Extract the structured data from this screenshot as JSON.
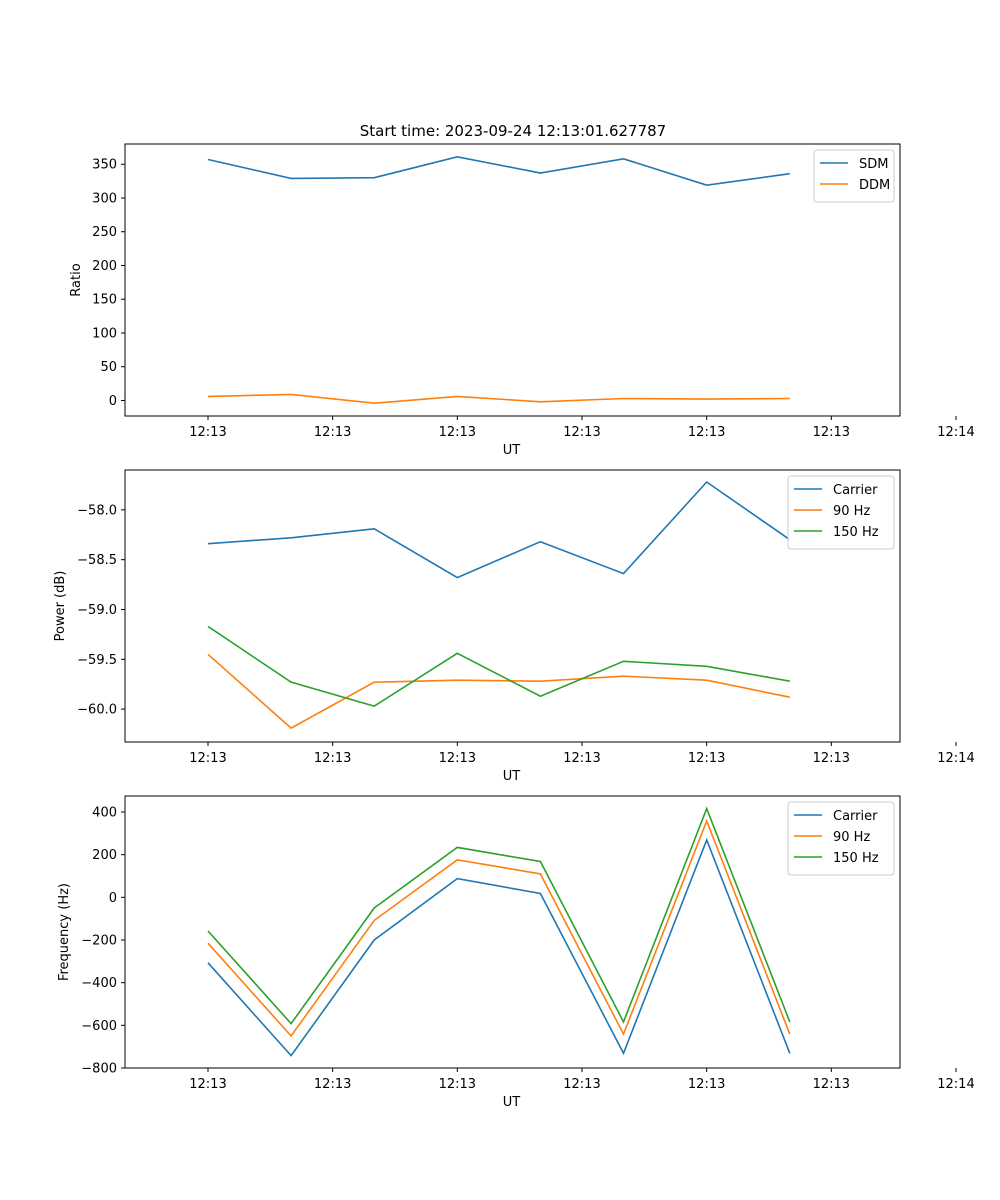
{
  "title": "Start time: 2023-09-24 12:13:01.627787",
  "chart_data": [
    {
      "type": "line",
      "ylabel": "Ratio",
      "xlabel": "UT",
      "x_tick_labels": [
        "12:13",
        "12:13",
        "12:13",
        "12:13",
        "12:13",
        "12:13",
        "12:14"
      ],
      "x_range": [
        0,
        9.2
      ],
      "x": [
        1,
        2,
        3,
        4,
        5,
        6,
        7,
        8
      ],
      "ylim": [
        -23,
        380
      ],
      "y_ticks": [
        0,
        50,
        100,
        150,
        200,
        250,
        300,
        350
      ],
      "y_tick_labels": [
        "0",
        "50",
        "100",
        "150",
        "200",
        "250",
        "300",
        "350"
      ],
      "legend_position": "top-right",
      "series": [
        {
          "name": "SDM",
          "color": "#1f77b4",
          "values": [
            357,
            329,
            330,
            361,
            337,
            358,
            319,
            336
          ]
        },
        {
          "name": "DDM",
          "color": "#ff7f0e",
          "values": [
            6,
            9,
            -4,
            6,
            -2,
            3,
            2,
            3
          ]
        }
      ]
    },
    {
      "type": "line",
      "ylabel": "Power (dB)",
      "xlabel": "UT",
      "x_tick_labels": [
        "12:13",
        "12:13",
        "12:13",
        "12:13",
        "12:13",
        "12:13",
        "12:14"
      ],
      "x_range": [
        0,
        9.2
      ],
      "x": [
        1,
        2,
        3,
        4,
        5,
        6,
        7,
        8
      ],
      "ylim": [
        -60.33,
        -57.6
      ],
      "y_ticks": [
        -60.0,
        -59.5,
        -59.0,
        -58.5,
        -58.0
      ],
      "y_tick_labels": [
        "−60.0",
        "−59.5",
        "−59.0",
        "−58.5",
        "−58.0"
      ],
      "legend_position": "top-right",
      "series": [
        {
          "name": "Carrier",
          "color": "#1f77b4",
          "values": [
            -58.34,
            -58.28,
            -58.19,
            -58.68,
            -58.32,
            -58.64,
            -57.72,
            -58.3
          ]
        },
        {
          "name": "90 Hz",
          "color": "#ff7f0e",
          "values": [
            -59.45,
            -60.19,
            -59.73,
            -59.71,
            -59.72,
            -59.67,
            -59.71,
            -59.88
          ]
        },
        {
          "name": "150 Hz",
          "color": "#2ca02c",
          "values": [
            -59.17,
            -59.73,
            -59.97,
            -59.44,
            -59.87,
            -59.52,
            -59.57,
            -59.72
          ]
        }
      ]
    },
    {
      "type": "line",
      "ylabel": "Frequency (Hz)",
      "xlabel": "UT",
      "x_tick_labels": [
        "12:13",
        "12:13",
        "12:13",
        "12:13",
        "12:13",
        "12:13",
        "12:14"
      ],
      "x_range": [
        0,
        9.2
      ],
      "x": [
        1,
        2,
        3,
        4,
        5,
        6,
        7,
        8
      ],
      "ylim": [
        -800,
        475
      ],
      "y_ticks": [
        -800,
        -600,
        -400,
        -200,
        0,
        200,
        400
      ],
      "y_tick_labels": [
        "−800",
        "−600",
        "−400",
        "−200",
        "0",
        "200",
        "400"
      ],
      "legend_position": "top-right",
      "series": [
        {
          "name": "Carrier",
          "color": "#1f77b4",
          "values": [
            -307,
            -742,
            -200,
            88,
            18,
            -731,
            269,
            -731
          ]
        },
        {
          "name": "90 Hz",
          "color": "#ff7f0e",
          "values": [
            -215,
            -650,
            -108,
            176,
            110,
            -641,
            358,
            -641
          ]
        },
        {
          "name": "150 Hz",
          "color": "#2ca02c",
          "values": [
            -158,
            -592,
            -50,
            234,
            168,
            -584,
            416,
            -584
          ]
        }
      ]
    }
  ]
}
